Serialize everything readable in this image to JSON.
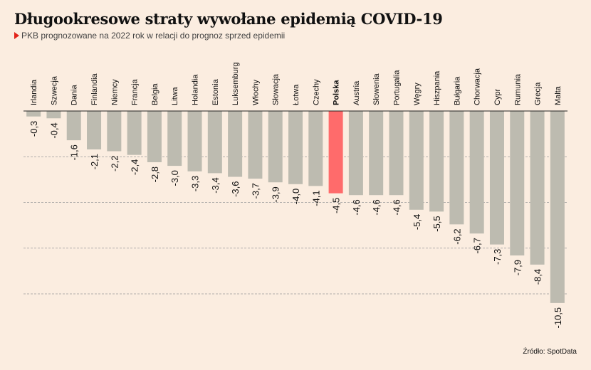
{
  "title": "Długookresowe straty wywołane epidemią COVID-19",
  "subtitle": "PKB prognozowane na 2022 rok w relacji do prognoz sprzed epidemii",
  "source": "Źródło: SpotData",
  "colors": {
    "bar": "#bdbbb0",
    "highlight": "#ff6b6b",
    "background": "#fbede0",
    "marker": "#e2231a"
  },
  "chart_data": {
    "type": "bar",
    "categories": [
      "Irlandia",
      "Szwecja",
      "Dania",
      "Finlandia",
      "Niemcy",
      "Francja",
      "Belgia",
      "Litwa",
      "Holandia",
      "Estonia",
      "Luksemburg",
      "Włochy",
      "Słowacja",
      "Łotwa",
      "Czechy",
      "Polska",
      "Austria",
      "Słowenia",
      "Portugalia",
      "Węgry",
      "Hiszpania",
      "Bułgaria",
      "Chorwacja",
      "Cypr",
      "Rumunia",
      "Grecja",
      "Malta"
    ],
    "values": [
      -0.3,
      -0.4,
      -1.6,
      -2.1,
      -2.2,
      -2.4,
      -2.8,
      -3.0,
      -3.3,
      -3.4,
      -3.6,
      -3.7,
      -3.9,
      -4.0,
      -4.1,
      -4.5,
      -4.6,
      -4.6,
      -4.6,
      -5.4,
      -5.5,
      -6.2,
      -6.7,
      -7.3,
      -7.9,
      -8.4,
      -10.5
    ],
    "labels": [
      "-0,3",
      "-0,4",
      "-1,6",
      "-2,1",
      "-2,2",
      "-2,4",
      "-2,8",
      "-3,0",
      "-3,3",
      "-3,4",
      "-3,6",
      "-3,7",
      "-3,9",
      "-4,0",
      "-4,1",
      "-4,5",
      "-4,6",
      "-4,6",
      "-4,6",
      "-5,4",
      "-5,5",
      "-6,2",
      "-6,7",
      "-7,3",
      "-7,9",
      "-8,4",
      "-10,5"
    ],
    "highlight": "Polska",
    "ylim": [
      -11,
      0
    ],
    "grid": [
      -2.5,
      -5,
      -7.5,
      -10
    ],
    "grid_style": "dashed",
    "legend": "none"
  }
}
